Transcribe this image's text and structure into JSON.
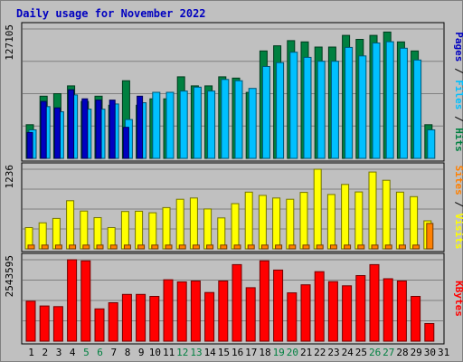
{
  "chart_data": {
    "type": "bar",
    "title": "Daily usage for November 2022",
    "categories": [
      "1",
      "2",
      "3",
      "4",
      "5",
      "6",
      "7",
      "8",
      "9",
      "10",
      "11",
      "12",
      "13",
      "14",
      "15",
      "16",
      "17",
      "18",
      "19",
      "20",
      "21",
      "22",
      "23",
      "24",
      "25",
      "26",
      "27",
      "28",
      "29",
      "30",
      "31"
    ],
    "weekend_days": [
      "5",
      "6",
      "12",
      "13",
      "19",
      "20",
      "26",
      "27"
    ],
    "panels": [
      {
        "id": "hits-files-pages",
        "ymax_label": "127105",
        "ylim": [
          0,
          127105
        ],
        "legend": [
          "Pages",
          "Files",
          "Hits"
        ],
        "series": [
          {
            "name": "Hits",
            "color": "#008040",
            "values": [
              33100,
              61050,
              63540,
              71180,
              55950,
              61050,
              52150,
              76270,
              52150,
              58500,
              58500,
              80080,
              71180,
              71180,
              80080,
              78810,
              64810,
              105500,
              110600,
              115640,
              114400,
              109300,
              109300,
              120800,
              116900,
              120800,
              124100,
              114400,
              105500,
              33100,
              null
            ]
          },
          {
            "name": "Files",
            "color": "#00c0ff",
            "values": [
              27960,
              50850,
              45760,
              62320,
              48310,
              48310,
              53400,
              38140,
              54670,
              64850,
              64850,
              66120,
              69940,
              66120,
              77520,
              76240,
              68670,
              90190,
              94000,
              104300,
              99200,
              95400,
              95400,
              109000,
              100600,
              113300,
              114600,
              108200,
              96600,
              27960,
              null
            ]
          },
          {
            "name": "Pages",
            "color": "#0000c0",
            "values": [
              25420,
              55950,
              49580,
              67390,
              58500,
              57220,
              57220,
              30500,
              61050,
              null,
              null,
              null,
              null,
              null,
              null,
              null,
              null,
              null,
              null,
              null,
              null,
              null,
              null,
              null,
              null,
              null,
              null,
              null,
              null,
              null,
              null
            ]
          }
        ]
      },
      {
        "id": "visits-sites",
        "ymax_label": "1236",
        "ylim": [
          0,
          1236
        ],
        "legend": [
          "Sites",
          "Visits"
        ],
        "series": [
          {
            "name": "Visits",
            "color": "#ffff00",
            "values": [
              330,
              404,
              472,
              747,
              587,
              484,
              330,
              580,
              584,
              560,
              640,
              770,
              790,
              620,
              480,
              702,
              880,
              830,
              790,
              770,
              876,
              1236,
              844,
              1000,
              884,
              1193,
              1064,
              880,
              810,
              435,
              null
            ]
          },
          {
            "name": "Sites",
            "color": "#ff8000",
            "values": [
              59,
              59,
              59,
              59,
              59,
              59,
              59,
              59,
              59,
              59,
              59,
              59,
              59,
              59,
              59,
              59,
              59,
              59,
              59,
              59,
              59,
              59,
              59,
              59,
              59,
              59,
              59,
              59,
              59,
              394,
              null
            ]
          }
        ]
      },
      {
        "id": "kbytes",
        "ymax_label": "2543595",
        "ylim": [
          0,
          2543595
        ],
        "legend": [
          "KBytes"
        ],
        "series": [
          {
            "name": "KBytes",
            "color": "#ff0000",
            "values": [
              1250000,
              1100000,
              1080000,
              2543595,
              2510000,
              1010000,
              1200000,
              1460000,
              1460000,
              1400000,
              1920000,
              1850000,
              1880000,
              1520000,
              1880000,
              2390000,
              1670000,
              2510000,
              2220000,
              1510000,
              1760000,
              2170000,
              1860000,
              1730000,
              2050000,
              2390000,
              1950000,
              1880000,
              1400000,
              550000,
              null
            ]
          }
        ]
      }
    ]
  }
}
